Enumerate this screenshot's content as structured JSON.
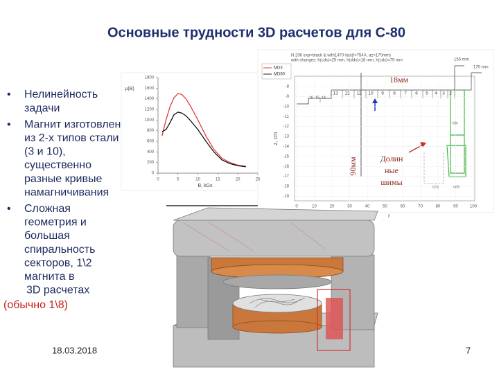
{
  "title": "Основные трудности 3D расчетов для С-80",
  "bullets": [
    {
      "lines": [
        "Нелинейность",
        "задачи"
      ]
    },
    {
      "lines": [
        "Магнит изготовлен",
        "из 2-х типов стали",
        "(3 и 10),",
        "существенно",
        "разные кривые",
        "намагничивания"
      ]
    },
    {
      "lines": [
        "Сложная",
        "геометрия и",
        "большая",
        "спиральность",
        "секторов, 1\\2",
        "магнита в",
        "3D расчетах"
      ]
    }
  ],
  "note": "(обычно 1\\8)",
  "bh_chart": {
    "type": "line",
    "xlabel": "B, kGs",
    "ylabel": "μ(B)",
    "x": [
      1,
      2,
      3,
      4,
      5,
      6,
      7,
      8,
      10,
      12,
      14,
      16,
      18,
      20,
      22
    ],
    "series": [
      {
        "color": "#e03c3c",
        "values": [
          700,
          1000,
          1250,
          1420,
          1500,
          1480,
          1400,
          1280,
          1000,
          700,
          450,
          280,
          200,
          150,
          130
        ]
      },
      {
        "color": "#111111",
        "values": [
          780,
          820,
          950,
          1100,
          1150,
          1130,
          1080,
          1000,
          820,
          600,
          400,
          250,
          180,
          140,
          120
        ]
      }
    ],
    "xlim": [
      0,
      25
    ],
    "xticks": [
      0,
      5,
      10,
      15,
      20,
      25
    ],
    "ylim": [
      0,
      1800
    ],
    "yticks": [
      0,
      200,
      400,
      600,
      800,
      1000,
      1200,
      1400,
      1600,
      1800
    ]
  },
  "geometry": {
    "header": [
      "N 206 exp=black & with1470-last(I=754A, az=170mm)",
      "with changes: h(cds)=25 mm, h(dds)=18 mm, h(cds)=79 mm"
    ],
    "legend": [
      "MD3",
      "MD80"
    ],
    "z_label": "z, cm",
    "r_label": "r",
    "zticks": [
      -8,
      -9,
      -10,
      -11,
      -12,
      -13,
      -14,
      -15,
      -16,
      -17,
      -18,
      -19
    ],
    "rticks": [
      0,
      10,
      20,
      30,
      40,
      50,
      60,
      70,
      80,
      90,
      100
    ],
    "sector_numbers": [
      "16",
      "15",
      "14",
      "13",
      "12",
      "11",
      "10",
      "9",
      "8",
      "7",
      "6",
      "5",
      "4",
      "3",
      "2"
    ],
    "dimensions": [
      "155 mm",
      "170 mm"
    ],
    "regions": [
      "lds",
      "ccs",
      "cds"
    ]
  },
  "annotations": {
    "shim_height": "18мм",
    "valley_depth": "90мм",
    "valley_shims": [
      "Долин",
      "ные",
      "шимы"
    ]
  },
  "footer": {
    "date": "18.03.2018",
    "page": "7"
  }
}
